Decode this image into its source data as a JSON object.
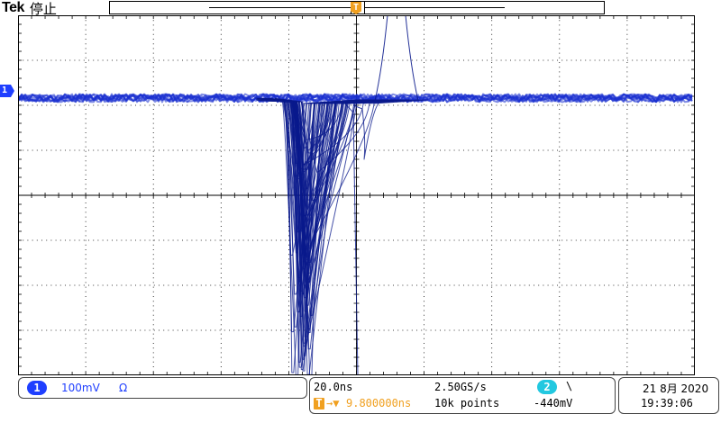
{
  "header": {
    "brand": "Tek",
    "acq_state": "停止"
  },
  "markers": {
    "trigger_position_glyph": "T",
    "channel_marker_label": "1"
  },
  "graticule": {
    "divisions_x": 10,
    "divisions_y": 8
  },
  "colors": {
    "trace": "#0a1a8c",
    "trace_core": "#1a2fd0",
    "ch1": "#1f3fff",
    "ch2": "#22c8e0",
    "trigger": "#f0a020",
    "grid": "#000000"
  },
  "channel1": {
    "badge": "1",
    "scale": "100mV",
    "coupling": "Ω"
  },
  "timebase": {
    "scale": "20.0ns",
    "sample_rate": "2.50GS/s",
    "record_length": "10k points"
  },
  "trigger": {
    "icon": "T",
    "arrow": "→▼",
    "delay": "9.800000ns",
    "source_badge": "2",
    "slope": "\\",
    "level": "-440mV"
  },
  "datetime": {
    "date": "21 8月  2020",
    "time": "19:39:06"
  }
}
